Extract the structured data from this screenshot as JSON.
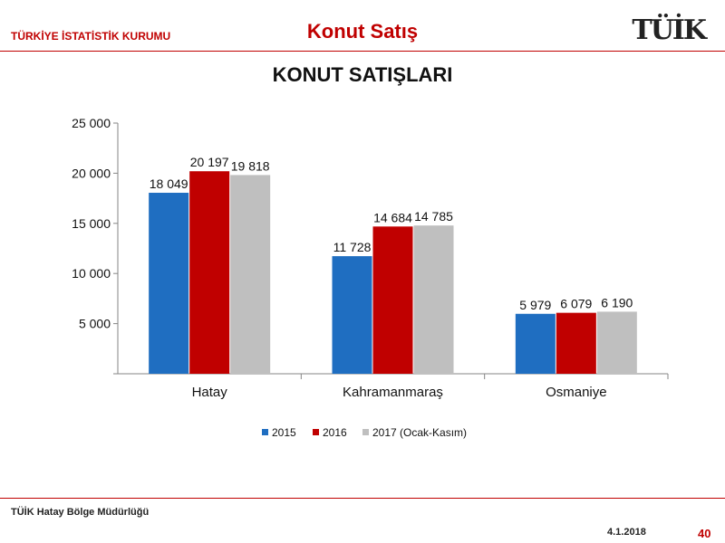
{
  "header": {
    "org": "TÜRKİYE İSTATİSTİK KURUMU",
    "title": "Konut Satış",
    "logo": "TÜİK"
  },
  "chart_data": {
    "type": "bar",
    "title": "KONUT SATIŞLARI",
    "categories": [
      "Hatay",
      "Kahramanmaraş",
      "Osmaniye"
    ],
    "series": [
      {
        "name": "2015",
        "values": [
          18049,
          11728,
          5979
        ],
        "labels": [
          "18 049",
          "11 728",
          "5 979"
        ],
        "color": "#1f6ec1"
      },
      {
        "name": "2016",
        "values": [
          20197,
          14684,
          6079
        ],
        "labels": [
          "20 197",
          "14 684",
          "6 079"
        ],
        "color": "#c00000"
      },
      {
        "name": "2017 (Ocak-Kasım)",
        "values": [
          19818,
          14785,
          6190
        ],
        "labels": [
          "19 818",
          "14 785",
          "6 190"
        ],
        "color": "#bfbfbf"
      }
    ],
    "yticks": [
      0,
      5000,
      10000,
      15000,
      20000,
      25000
    ],
    "ytick_labels": [
      "",
      "5 000",
      "10 000",
      "15 000",
      "20 000",
      "25 000"
    ],
    "ylim": [
      0,
      25000
    ],
    "grid": false,
    "legend": "bottom"
  },
  "footer": {
    "office": "TÜİK Hatay Bölge Müdürlüğü",
    "date": "4.1.2018",
    "page": "40"
  }
}
